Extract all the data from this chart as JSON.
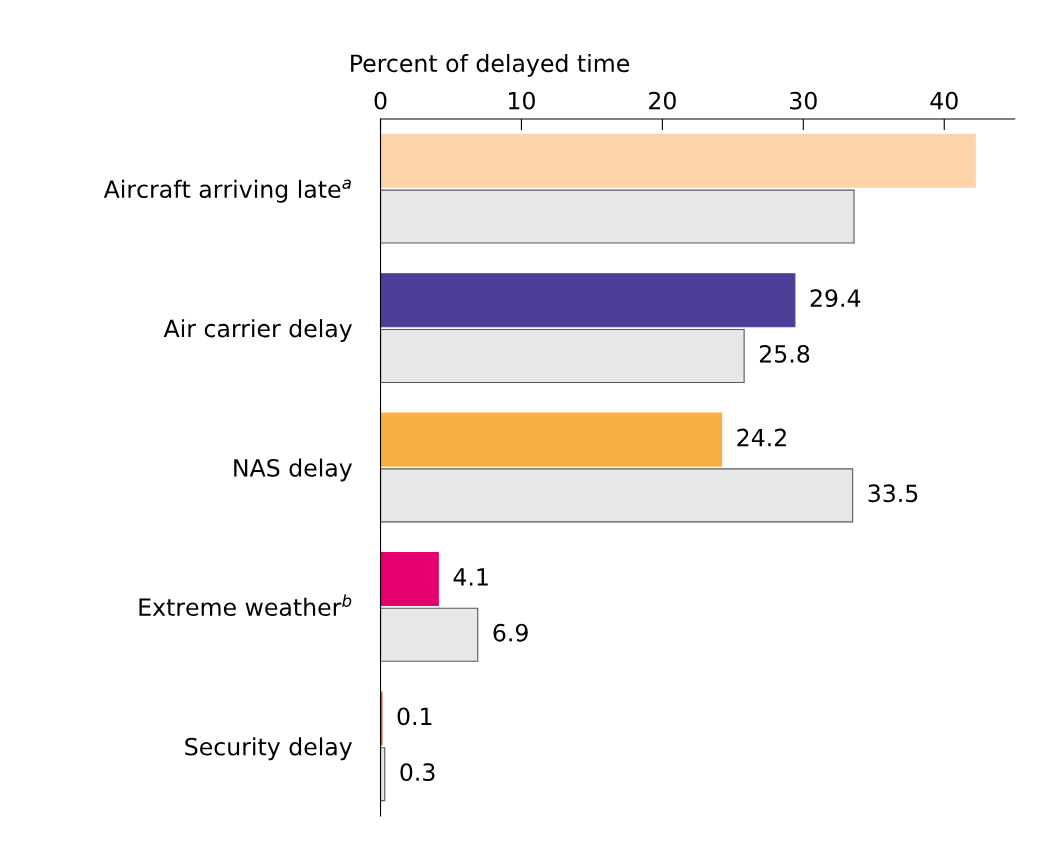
{
  "chart_data": {
    "type": "bar",
    "orientation": "horizontal",
    "xlabel": "Percent of delayed time",
    "categories": [
      "Aircraft arriving late$^{a}$",
      "Air carrier delay",
      "NAS delay",
      "Extreme weather$^{b}$",
      "Security delay"
    ],
    "series": [
      {
        "colors": [
          "#fdd4a9",
          "#4b3e97",
          "#f9ae43",
          "#e6006f",
          "#d4542b"
        ],
        "values": [
          42.2,
          29.4,
          24.2,
          4.1,
          0.1
        ],
        "value_labels": [
          null,
          "29.4",
          "24.2",
          "4.1",
          "0.1"
        ]
      },
      {
        "color": "#e6e7e8",
        "values": [
          33.6,
          25.8,
          33.5,
          6.9,
          0.3
        ],
        "value_labels": [
          null,
          "25.8",
          "33.5",
          "6.9",
          "0.3"
        ]
      }
    ],
    "xlim": [
      0,
      45
    ],
    "xticks": [
      0,
      10,
      20,
      30,
      40
    ],
    "grid": false,
    "legend": false
  }
}
